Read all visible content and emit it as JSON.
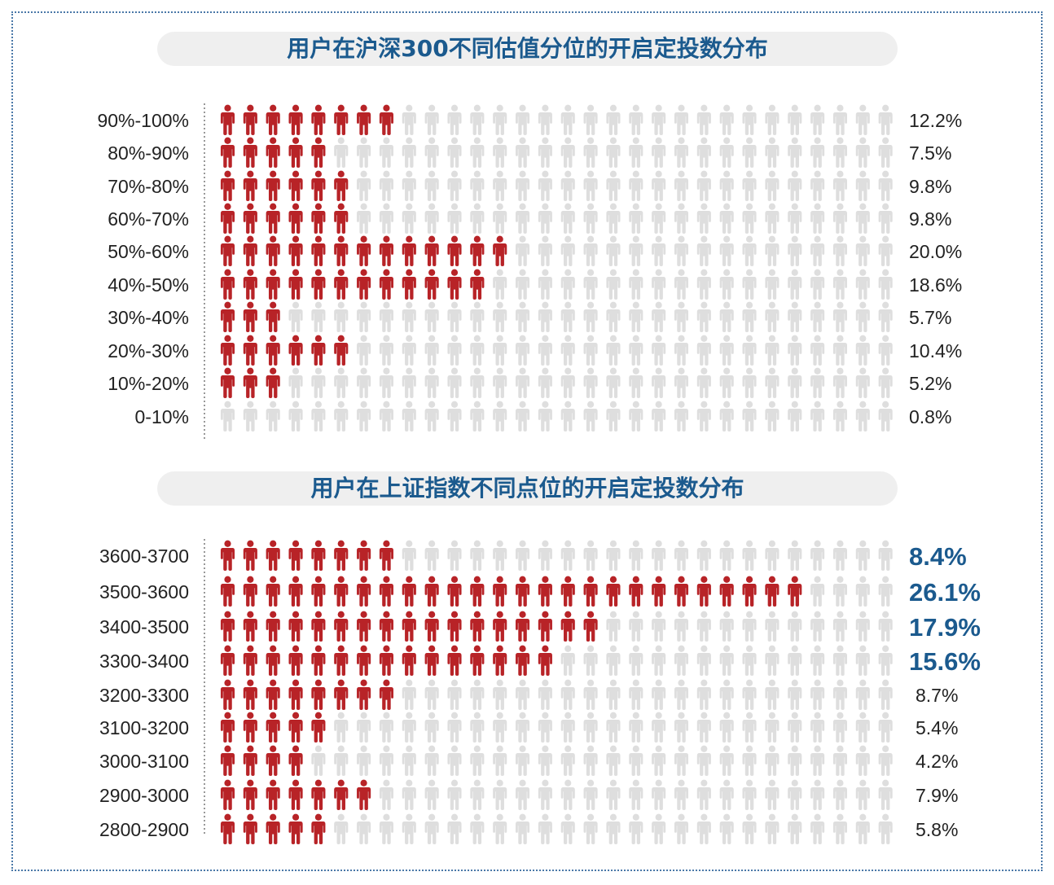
{
  "colors": {
    "filled": "#b82327",
    "empty": "#dedede",
    "title": "#1b5a8e",
    "highlight": "#1b5a8e",
    "frame": "#4a78a8"
  },
  "chart_data": [
    {
      "type": "bar",
      "title": "用户在沪深300不同估值分位的开启定投数分布",
      "categories": [
        "90%-100%",
        "80%-90%",
        "70%-80%",
        "60%-70%",
        "50%-60%",
        "40%-50%",
        "30%-40%",
        "20%-30%",
        "10%-20%",
        "0-10%"
      ],
      "values": [
        12.2,
        7.5,
        9.8,
        9.8,
        20.0,
        18.6,
        5.7,
        10.4,
        5.2,
        0.8
      ],
      "labels": [
        "12.2%",
        "7.5%",
        "9.8%",
        "9.8%",
        "20.0%",
        "18.6%",
        "5.7%",
        "10.4%",
        "5.2%",
        "0.8%"
      ],
      "icons_per_row": 30,
      "percent_per_icon": 1.5,
      "icon": "person-icon"
    },
    {
      "type": "bar",
      "title": "用户在上证指数不同点位的开启定投数分布",
      "categories": [
        "3600-3700",
        "3500-3600",
        "3400-3500",
        "3300-3400",
        "3200-3300",
        "3100-3200",
        "3000-3100",
        "2900-3000",
        "2800-2900"
      ],
      "values": [
        8.4,
        26.1,
        17.9,
        15.6,
        8.7,
        5.4,
        4.2,
        7.9,
        5.8
      ],
      "labels": [
        "8.4%",
        "26.1%",
        "17.9%",
        "15.6%",
        "8.7%",
        "5.4%",
        "4.2%",
        "7.9%",
        "5.8%"
      ],
      "highlighted": [
        true,
        true,
        true,
        true,
        false,
        false,
        false,
        false,
        false
      ],
      "icons_per_row": 30,
      "percent_per_icon": 1.0,
      "icon": "person-icon"
    }
  ]
}
